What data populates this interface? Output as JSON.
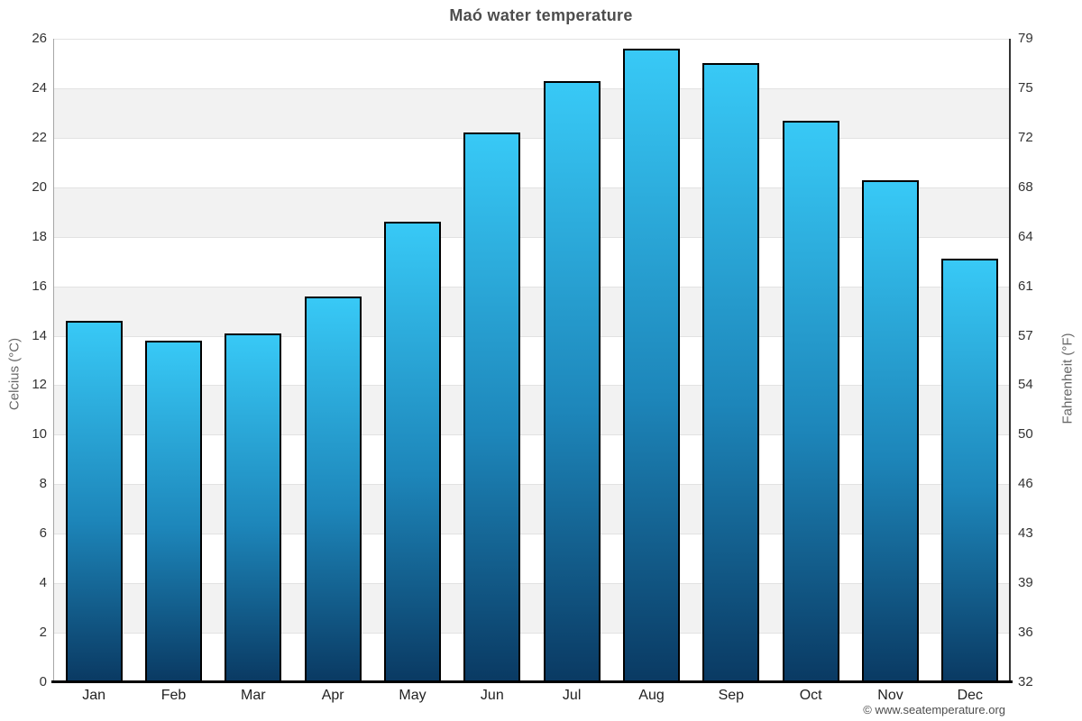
{
  "title": "Maó water temperature",
  "credit": "© www.seatemperature.org",
  "chart_data": {
    "type": "bar",
    "title": "Maó water temperature",
    "categories": [
      "Jan",
      "Feb",
      "Mar",
      "Apr",
      "May",
      "Jun",
      "Jul",
      "Aug",
      "Sep",
      "Oct",
      "Nov",
      "Dec"
    ],
    "values": [
      14.6,
      13.8,
      14.1,
      15.6,
      18.6,
      22.2,
      24.3,
      25.6,
      25.0,
      22.7,
      20.3,
      17.1
    ],
    "xlabel": "",
    "ylabel_left": "Celcius (°C)",
    "ylabel_right": "Fahrenheit (°F)",
    "ylim": [
      0,
      26
    ],
    "ytick_step_celsius": 2,
    "yticks_celsius": [
      0,
      2,
      4,
      6,
      8,
      10,
      12,
      14,
      16,
      18,
      20,
      22,
      24,
      26
    ],
    "yticks_fahrenheit": [
      32,
      36,
      39,
      43,
      46,
      50,
      54,
      57,
      61,
      64,
      68,
      72,
      75,
      79
    ],
    "grid": true,
    "legend_position": "none",
    "plot_bands": "alternating white / light-gray horizontal bands every 2°C",
    "colors": {
      "bar_gradient_top": "#38c9f6",
      "bar_gradient_mid": "#1d86ba",
      "bar_gradient_bottom": "#0a3a63",
      "bar_border": "#000000",
      "band_gray": "#f2f2f2",
      "band_white": "#ffffff",
      "gridline": "#e2e2e2",
      "title_text": "#4d4d4d",
      "tick_text": "#333333",
      "axis_title_text": "#666666",
      "credit_text": "#4d4d4d"
    }
  }
}
